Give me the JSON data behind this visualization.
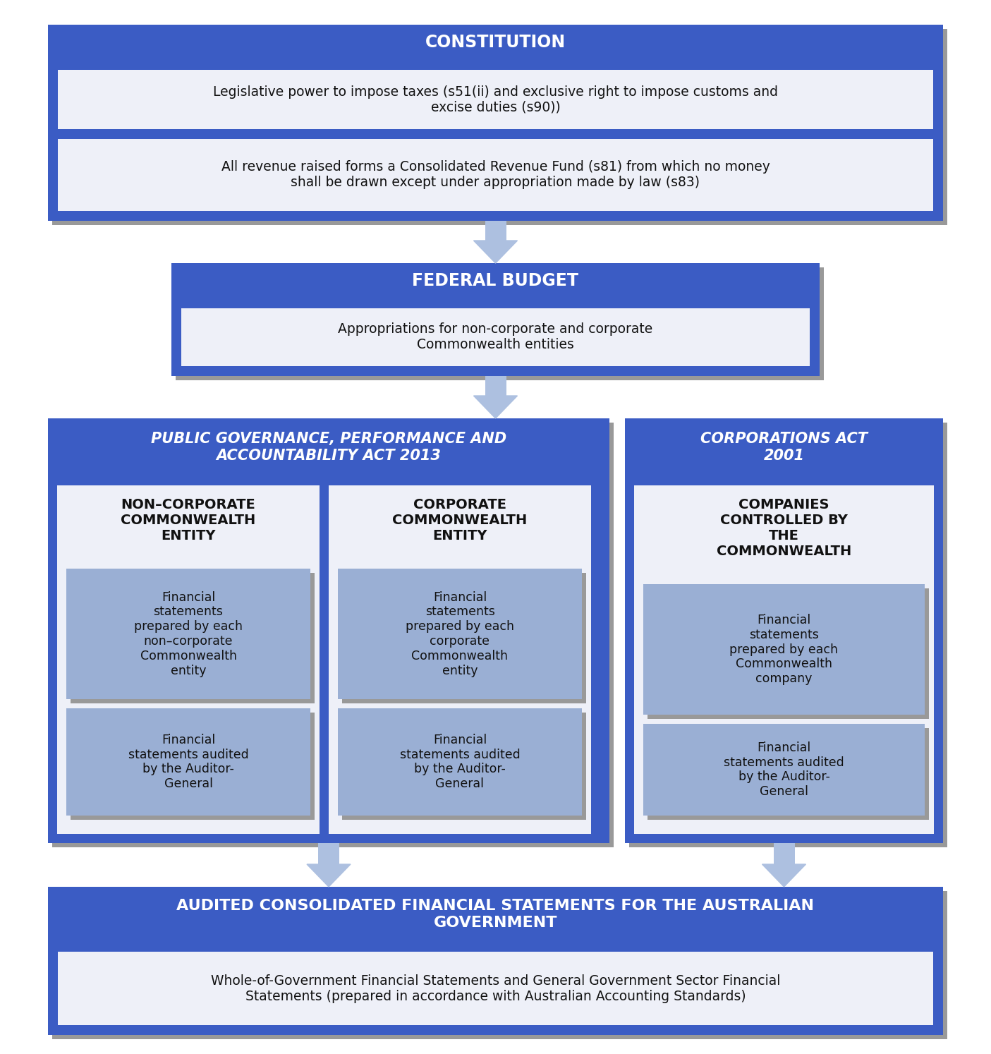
{
  "bg_color": "#ffffff",
  "blue_header": "#3b5cc4",
  "blue_outer": "#4060c8",
  "blue_inner_box": "#aebfe8",
  "white_box": "#eef0f8",
  "light_blue_box": "#9aafd4",
  "shadow_color": "#888888",
  "arrow_color": "#adc0e0",
  "text_white": "#ffffff",
  "text_black": "#111111",
  "constitution_title": "CONSTITUTION",
  "constitution_box1": "Legislative power to impose taxes (s51(ii) and exclusive right to impose customs and\nexcise duties (s90))",
  "constitution_box2": "All revenue raised forms a Consolidated Revenue Fund (s81) from which no money\nshall be drawn except under appropriation made by law (s83)",
  "fed_budget_title": "FEDERAL BUDGET",
  "fed_budget_box": "Appropriations for non-corporate and corporate\nCommonwealth entities",
  "pgpa_title": "PUBLIC GOVERNANCE, PERFORMANCE AND\nACCOUNTABILITY ACT 2013",
  "corp_act_title": "CORPORATIONS ACT\n2001",
  "nce_title": "NON–CORPORATE\nCOMMONWEALTH\nENTITY",
  "cce_title": "CORPORATE\nCOMMONWEALTH\nENTITY",
  "companies_title": "COMPANIES\nCONTROLLED BY\nTHE\nCOMMONWEALTH",
  "fin_stmt_nce": "Financial\nstatements\nprepared by each\nnon–corporate\nCommonwealth\nentity",
  "fin_stmt_cce": "Financial\nstatements\nprepared by each\ncorporate\nCommonwealth\nentity",
  "fin_stmt_comp": "Financial\nstatements\nprepared by each\nCommonwealth\ncompany",
  "audit_nce": "Financial\nstatements audited\nby the Auditor-\nGeneral",
  "audit_cce": "Financial\nstatements audited\nby the Auditor-\nGeneral",
  "audit_comp": "Financial\nstatements audited\nby the Auditor-\nGeneral",
  "bottom_title": "AUDITED CONSOLIDATED FINANCIAL STATEMENTS FOR THE AUSTRALIAN\nGOVERNMENT",
  "bottom_box": "Whole-of-Government Financial Statements and General Government Sector Financial\nStatements (prepared in accordance with Australian Accounting Standards)"
}
